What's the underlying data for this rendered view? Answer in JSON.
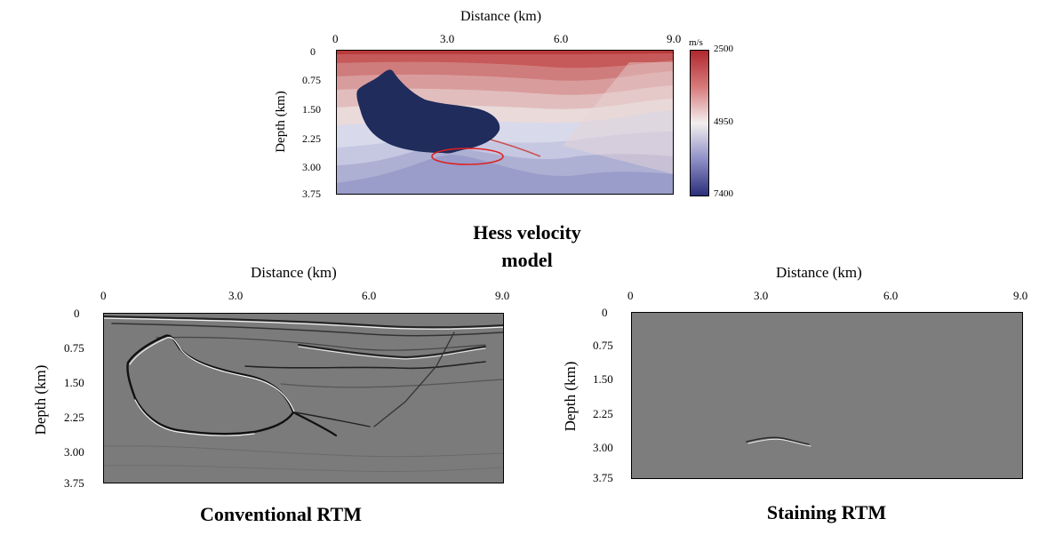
{
  "top_panel": {
    "xlabel": "Distance (km)",
    "ylabel": "Depth (km)",
    "xticks": [
      "0",
      "3.0",
      "6.0",
      "9.0"
    ],
    "yticks": [
      "0",
      "0.75",
      "1.50",
      "2.25",
      "3.00",
      "3.75"
    ],
    "colorbar_unit": "m/s",
    "colorbar_ticks": [
      "2500",
      "4950",
      "7400"
    ],
    "caption_line1": "Hess velocity",
    "caption_line2": "model",
    "highlight_color": "#e02020",
    "salt_color": "#1f2c5c"
  },
  "left_panel": {
    "xlabel": "Distance (km)",
    "ylabel": "Depth (km)",
    "xticks": [
      "0",
      "3.0",
      "6.0",
      "9.0"
    ],
    "yticks": [
      "0",
      "0.75",
      "1.50",
      "2.25",
      "3.00",
      "3.75"
    ],
    "caption": "Conventional RTM"
  },
  "right_panel": {
    "xlabel": "Distance (km)",
    "ylabel": "Depth (km)",
    "xticks": [
      "0",
      "3.0",
      "6.0",
      "9.0"
    ],
    "yticks": [
      "0",
      "0.75",
      "1.50",
      "2.25",
      "3.00",
      "3.75"
    ],
    "caption": "Staining RTM"
  }
}
